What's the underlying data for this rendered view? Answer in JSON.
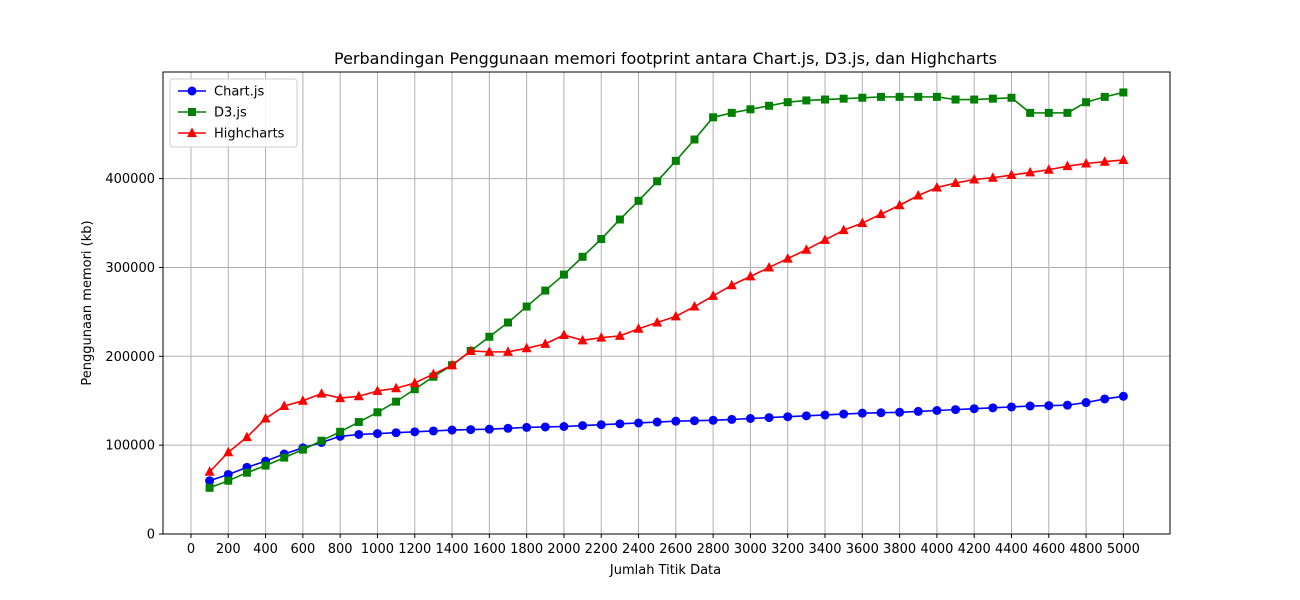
{
  "chart_data": {
    "type": "line",
    "title": "Perbandingan Penggunaan memori footprint antara Chart.js, D3.js, dan Highcharts",
    "xlabel": "Jumlah Titik Data",
    "ylabel": "Penggunaan memori (kb)",
    "xlim": [
      -150,
      5250
    ],
    "ylim": [
      0,
      520000
    ],
    "xticks": [
      0,
      200,
      400,
      600,
      800,
      1000,
      1200,
      1400,
      1600,
      1800,
      2000,
      2200,
      2400,
      2600,
      2800,
      3000,
      3200,
      3400,
      3600,
      3800,
      4000,
      4200,
      4400,
      4600,
      4800,
      5000
    ],
    "xtick_labels": [
      "0",
      "200",
      "400",
      "600",
      "800",
      "1000",
      "1200",
      "1400",
      "1600",
      "1800",
      "2000",
      "2200",
      "2400",
      "2600",
      "2800",
      "3000",
      "3200",
      "3400",
      "3600",
      "3800",
      "4000",
      "4200",
      "4400",
      "4600",
      "4800",
      "5000"
    ],
    "yticks": [
      0,
      100000,
      200000,
      300000,
      400000
    ],
    "ytick_labels": [
      "0",
      "100000",
      "200000",
      "300000",
      "400000"
    ],
    "grid": true,
    "legend_position": "top-left",
    "x": [
      100,
      200,
      300,
      400,
      500,
      600,
      700,
      800,
      900,
      1000,
      1100,
      1200,
      1300,
      1400,
      1500,
      1600,
      1700,
      1800,
      1900,
      2000,
      2100,
      2200,
      2300,
      2400,
      2500,
      2600,
      2700,
      2800,
      2900,
      3000,
      3100,
      3200,
      3300,
      3400,
      3500,
      3600,
      3700,
      3800,
      3900,
      4000,
      4100,
      4200,
      4300,
      4400,
      4500,
      4600,
      4700,
      4800,
      4900,
      5000
    ],
    "series": [
      {
        "name": "Chart.js",
        "color": "#0000ff",
        "marker": "circle",
        "values": [
          60000,
          67000,
          75000,
          82000,
          90000,
          97000,
          103000,
          110000,
          112000,
          113000,
          114000,
          115000,
          116000,
          117000,
          117500,
          118000,
          119000,
          120000,
          120500,
          121000,
          122000,
          123000,
          124000,
          125000,
          126000,
          127000,
          127500,
          128000,
          129000,
          130000,
          131000,
          132000,
          133000,
          134000,
          135000,
          136000,
          136500,
          137000,
          138000,
          139000,
          140000,
          141000,
          142000,
          143000,
          144000,
          144500,
          145000,
          148000,
          152000,
          155000
        ]
      },
      {
        "name": "D3.js",
        "color": "#008000",
        "marker": "square",
        "values": [
          52000,
          60000,
          69000,
          77000,
          86000,
          95000,
          105000,
          115000,
          126000,
          137000,
          149000,
          163000,
          177000,
          190000,
          206000,
          222000,
          238000,
          256000,
          274000,
          292000,
          312000,
          332000,
          354000,
          375000,
          397000,
          420000,
          444000,
          469000,
          474000,
          478000,
          482000,
          486000,
          488000,
          489000,
          490000,
          491000,
          492000,
          492000,
          492000,
          492000,
          489000,
          489000,
          490000,
          491000,
          474000,
          474000,
          474000,
          486000,
          492000,
          497000
        ]
      },
      {
        "name": "Highcharts",
        "color": "#ff0000",
        "marker": "triangle",
        "values": [
          70000,
          92000,
          109000,
          130000,
          144000,
          150000,
          158000,
          153000,
          155000,
          161000,
          164000,
          170000,
          180000,
          190000,
          206000,
          205000,
          205000,
          209000,
          214000,
          224000,
          218000,
          221000,
          223000,
          231000,
          238000,
          245000,
          256000,
          268000,
          280000,
          290000,
          300000,
          310000,
          320000,
          331000,
          342000,
          350000,
          360000,
          370000,
          381000,
          390000,
          395000,
          399000,
          401000,
          404000,
          407000,
          410000,
          414000,
          417000,
          419000,
          421000
        ]
      }
    ]
  }
}
